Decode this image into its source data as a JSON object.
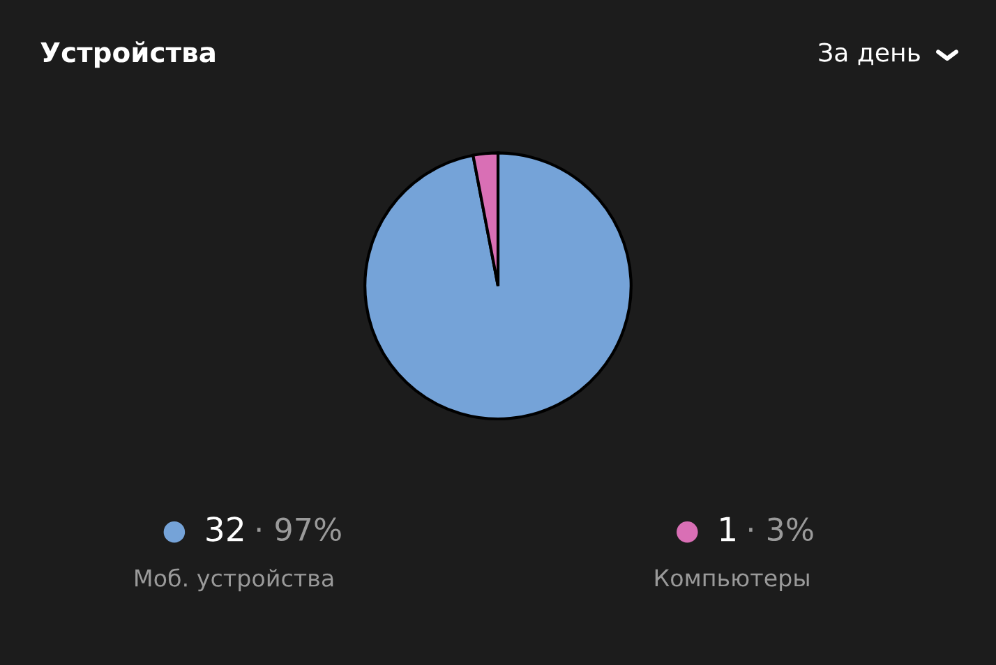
{
  "chart_data": {
    "type": "pie",
    "title": "Устройства",
    "categories": [
      "Моб. устройства",
      "Компьютеры"
    ],
    "values": [
      97,
      3
    ],
    "value_labels": [
      "32 · 97%",
      "1 · 3%"
    ],
    "colors": [
      "#75a3d8",
      "#d96fb5"
    ],
    "legend": "bottom",
    "annotations": [
      "За день"
    ]
  }
}
